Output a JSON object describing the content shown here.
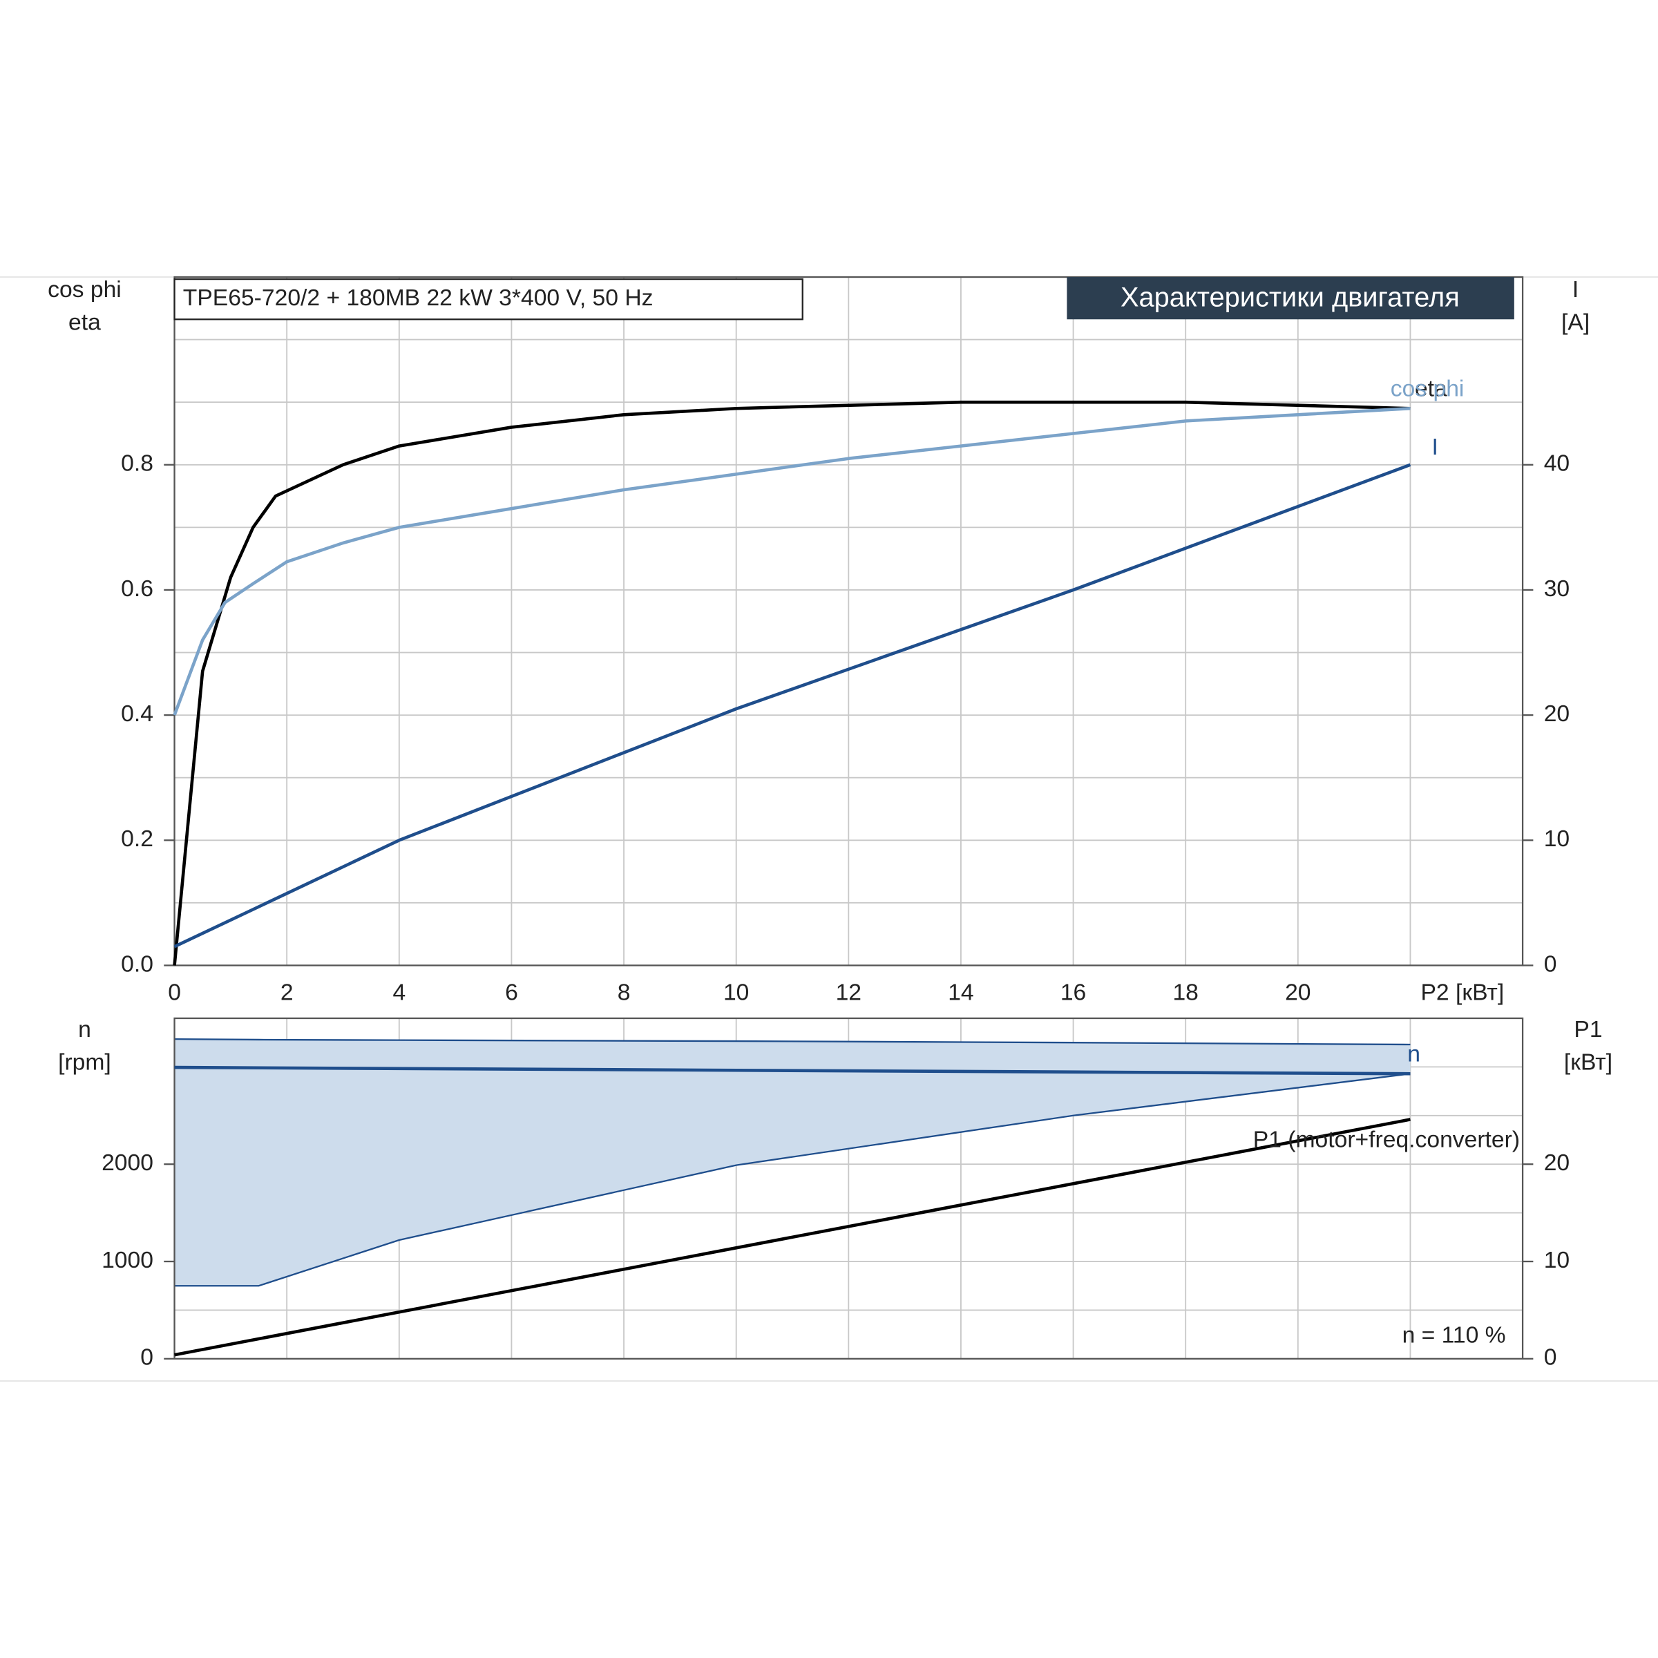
{
  "chart_data": [
    {
      "type": "line",
      "title": "TPE65-720/2 + 180MB   22 kW   3*400 V, 50 Hz",
      "subtitle": "Характеристики двигателя",
      "y_label": [
        "cos phi",
        "eta"
      ],
      "y2_label": [
        "I",
        "[A]"
      ],
      "x_label": "P2 [кВт]",
      "xlim": [
        0,
        24
      ],
      "xticks": [
        0,
        2,
        4,
        6,
        8,
        10,
        12,
        14,
        16,
        18,
        20
      ],
      "xgrid": [
        0,
        2,
        4,
        6,
        8,
        10,
        12,
        14,
        16,
        18,
        20,
        22
      ],
      "ylim": [
        0,
        1.1
      ],
      "yticks": [
        {
          "value": 0,
          "label": "0.0"
        },
        0.2,
        0.4,
        0.6,
        0.8
      ],
      "ygrid": [
        0.1,
        0.2,
        0.3,
        0.4,
        0.5,
        0.6,
        0.7,
        0.8,
        0.9,
        1.0
      ],
      "y2lim": [
        0,
        55
      ],
      "y2ticks": [
        0,
        10,
        20,
        30,
        40
      ],
      "series": [
        {
          "name": "eta",
          "color": "#000000",
          "x": [
            0,
            0.5,
            1,
            1.4,
            1.8,
            3,
            4,
            6,
            8,
            10,
            14,
            18,
            22
          ],
          "values": [
            0,
            0.47,
            0.62,
            0.7,
            0.75,
            0.8,
            0.83,
            0.86,
            0.88,
            0.89,
            0.9,
            0.9,
            0.89
          ]
        },
        {
          "name": "cos phi",
          "color": "#7ba3c9",
          "x": [
            0,
            0.5,
            0.9,
            1.4,
            2,
            3,
            4,
            6,
            8,
            10,
            12,
            14,
            16,
            18,
            20,
            22
          ],
          "values": [
            0.4,
            0.52,
            0.58,
            0.61,
            0.645,
            0.675,
            0.7,
            0.73,
            0.76,
            0.785,
            0.81,
            0.83,
            0.85,
            0.87,
            0.88,
            0.89
          ]
        },
        {
          "name": "I",
          "color": "#1f4e8c",
          "axis": "y2",
          "x": [
            0,
            4,
            8,
            10,
            16,
            22
          ],
          "values": [
            1.5,
            10,
            17,
            20.5,
            30,
            40
          ]
        }
      ]
    },
    {
      "type": "line",
      "y_label": [
        "n",
        "[rpm]"
      ],
      "y2_label": [
        "P1",
        "[кВт]"
      ],
      "annotation": "n = 110 %",
      "xlim": [
        0,
        24
      ],
      "xgrid": [
        0,
        2,
        4,
        6,
        8,
        10,
        12,
        14,
        16,
        18,
        20,
        22
      ],
      "ylim": [
        0,
        3500
      ],
      "yticks": [
        0,
        1000,
        2000
      ],
      "ygrid": [
        500,
        1000,
        1500,
        2000,
        2500,
        3000
      ],
      "y2lim": [
        0,
        35
      ],
      "y2ticks": [
        0,
        10,
        20
      ],
      "bands": [
        {
          "color": "#cddcec",
          "line_color": "#1f4e8c",
          "x": [
            0,
            1.5,
            4,
            10,
            16,
            22
          ],
          "upper": [
            3286,
            3280,
            3275,
            3265,
            3250,
            3230
          ],
          "lower": [
            750,
            750,
            1220,
            1990,
            2500,
            2930
          ]
        }
      ],
      "series": [
        {
          "name": "n",
          "color": "#1f4e8c",
          "x": [
            0,
            22
          ],
          "values": [
            2995,
            2930
          ]
        },
        {
          "name": "P1 (motor+freq.converter)",
          "color": "#000000",
          "axis": "y2",
          "x": [
            0,
            22
          ],
          "values": [
            0.4,
            24.6
          ]
        }
      ]
    }
  ]
}
